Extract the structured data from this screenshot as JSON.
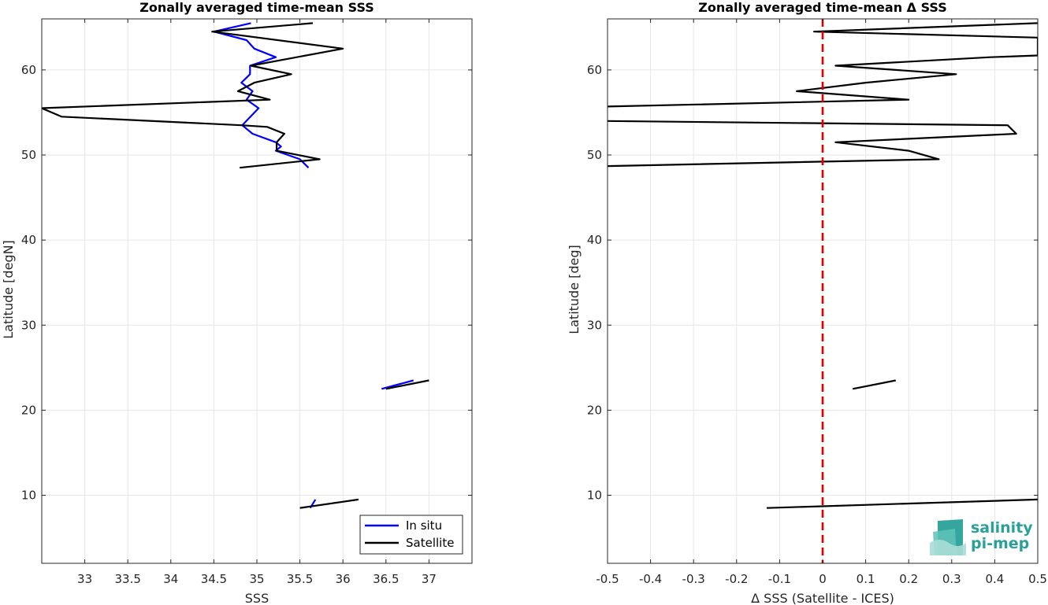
{
  "chart_data": [
    {
      "type": "line",
      "title": "Zonally averaged time-mean SSS",
      "xlabel": "SSS",
      "ylabel": "Latitude [degN]",
      "xlim": [
        32.5,
        37.5
      ],
      "ylim": [
        2,
        66
      ],
      "xticks": [
        33,
        33.5,
        34,
        34.5,
        35,
        35.5,
        36,
        36.5,
        37
      ],
      "xtick_labels": [
        "33",
        "33.5",
        "34",
        "34.5",
        "35",
        "35.5",
        "36",
        "36.5",
        "37"
      ],
      "yticks": [
        10,
        20,
        30,
        40,
        50,
        60
      ],
      "ytick_labels": [
        "10",
        "20",
        "30",
        "40",
        "50",
        "60"
      ],
      "grid": true,
      "legend_position": "bottom-right",
      "series": [
        {
          "name": "In situ",
          "color": "#0000ff",
          "segments": [
            [
              [
                34.93,
                65.5
              ],
              [
                34.5,
                64.5
              ],
              [
                34.88,
                63.5
              ],
              [
                34.97,
                62.5
              ],
              [
                35.22,
                61.5
              ],
              [
                34.92,
                60.5
              ],
              [
                34.92,
                59.5
              ],
              [
                34.82,
                58.5
              ],
              [
                34.95,
                57.5
              ],
              [
                34.88,
                56.5
              ],
              [
                35.02,
                55.5
              ],
              [
                34.83,
                53.5
              ],
              [
                34.95,
                52.5
              ],
              [
                35.22,
                51.5
              ],
              [
                35.28,
                51.0
              ],
              [
                35.22,
                50.5
              ],
              [
                35.5,
                49.5
              ],
              [
                35.6,
                48.5
              ]
            ],
            [
              [
                36.45,
                22.5
              ],
              [
                36.82,
                23.5
              ]
            ],
            [
              [
                35.62,
                8.5
              ],
              [
                35.68,
                9.5
              ]
            ]
          ]
        },
        {
          "name": "Satellite",
          "color": "#000000",
          "segments": [
            [
              [
                35.65,
                65.5
              ],
              [
                34.48,
                64.5
              ],
              [
                36.0,
                62.5
              ],
              [
                34.93,
                60.5
              ],
              [
                35.4,
                59.5
              ],
              [
                34.97,
                58.5
              ],
              [
                34.78,
                57.5
              ],
              [
                35.15,
                56.5
              ],
              [
                32.5,
                55.5
              ],
              [
                32.73,
                54.5
              ],
              [
                34.82,
                53.5
              ],
              [
                35.12,
                53.3
              ],
              [
                35.32,
                52.5
              ],
              [
                35.23,
                51.5
              ],
              [
                35.23,
                50.5
              ],
              [
                35.73,
                49.5
              ],
              [
                34.8,
                48.5
              ]
            ],
            [
              [
                36.5,
                22.5
              ],
              [
                37.0,
                23.5
              ]
            ],
            [
              [
                35.5,
                8.5
              ],
              [
                36.18,
                9.5
              ]
            ]
          ]
        }
      ]
    },
    {
      "type": "line",
      "title": "Zonally averaged time-mean Δ SSS",
      "xlabel": "Δ SSS (Satellite - ICES)",
      "ylabel": "Latitude [deg]",
      "xlim": [
        -0.5,
        0.5
      ],
      "ylim": [
        2,
        66
      ],
      "xticks": [
        -0.5,
        -0.4,
        -0.3,
        -0.2,
        -0.1,
        0,
        0.1,
        0.2,
        0.3,
        0.4,
        0.5
      ],
      "xtick_labels": [
        "-0.5",
        "-0.4",
        "-0.3",
        "-0.2",
        "-0.1",
        "0",
        "0.1",
        "0.2",
        "0.3",
        "0.4",
        "0.5"
      ],
      "yticks": [
        10,
        20,
        30,
        40,
        50,
        60
      ],
      "ytick_labels": [
        "10",
        "20",
        "30",
        "40",
        "50",
        "60"
      ],
      "grid": true,
      "reference_line": {
        "x": 0,
        "color": "#dd0000",
        "style": "dashed"
      },
      "series": [
        {
          "color": "#000000",
          "segments": [
            [
              [
                0.5,
                65.5
              ],
              [
                -0.02,
                64.5
              ],
              [
                0.5,
                63.8
              ],
              [
                0.5,
                61.7
              ],
              [
                0.39,
                61.5
              ],
              [
                0.03,
                60.5
              ],
              [
                0.31,
                59.5
              ],
              [
                0.1,
                58.5
              ],
              [
                -0.06,
                57.5
              ],
              [
                0.2,
                56.5
              ],
              [
                -0.5,
                55.7
              ]
            ],
            [
              [
                -0.5,
                54.0
              ],
              [
                0.43,
                53.5
              ],
              [
                0.45,
                52.5
              ],
              [
                0.03,
                51.5
              ],
              [
                0.2,
                50.5
              ],
              [
                0.27,
                49.5
              ],
              [
                -0.5,
                48.7
              ]
            ],
            [
              [
                0.07,
                22.5
              ],
              [
                0.17,
                23.5
              ]
            ],
            [
              [
                -0.13,
                8.5
              ],
              [
                0.5,
                9.5
              ]
            ]
          ]
        }
      ]
    }
  ],
  "logo": {
    "line1": "salinity",
    "line2": "pi-mep"
  }
}
